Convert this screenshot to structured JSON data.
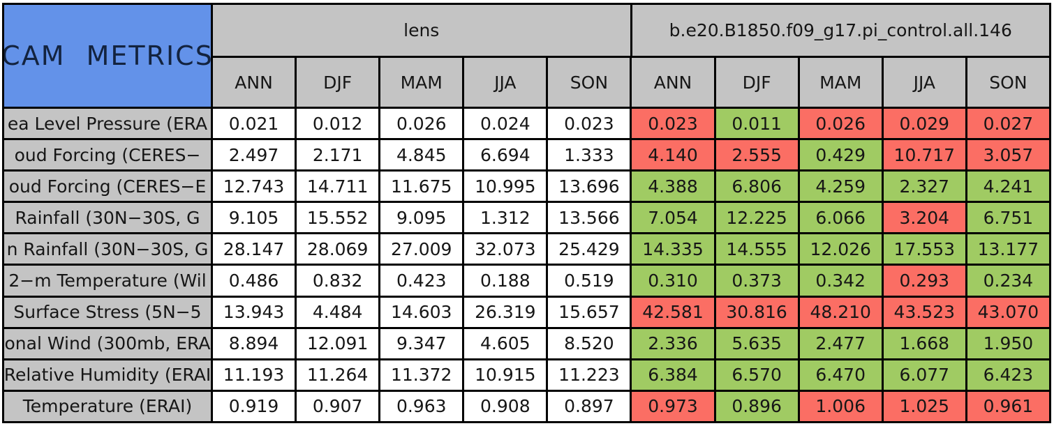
{
  "title": "CAM METRICS",
  "colors": {
    "corner_blue": "#6392E9",
    "header_gray": "#C4C4C4",
    "cell_green": "#A0CB63",
    "cell_red": "#FB6E64",
    "grid_line": "#000000",
    "lens_cell_white": "#FFFFFF"
  },
  "chart_data": {
    "type": "table",
    "title": "CAM METRICS",
    "column_groups": [
      {
        "label": "lens"
      },
      {
        "label": "b.e20.B1850.f09_g17.pi_control.all.146"
      }
    ],
    "seasons": [
      "ANN",
      "DJF",
      "MAM",
      "JJA",
      "SON"
    ],
    "rows": [
      {
        "label": "ea Level Pressure (ERA",
        "lens": [
          "0.021",
          "0.012",
          "0.026",
          "0.024",
          "0.023"
        ],
        "control": [
          "0.023",
          "0.011",
          "0.026",
          "0.029",
          "0.027"
        ],
        "control_status": [
          "red",
          "green",
          "red",
          "red",
          "red"
        ]
      },
      {
        "label": "oud Forcing (CERES−",
        "lens": [
          "2.497",
          "2.171",
          "4.845",
          "6.694",
          "1.333"
        ],
        "control": [
          "4.140",
          "2.555",
          "0.429",
          "10.717",
          "3.057"
        ],
        "control_status": [
          "red",
          "red",
          "green",
          "red",
          "red"
        ]
      },
      {
        "label": "oud Forcing (CERES−E",
        "lens": [
          "12.743",
          "14.711",
          "11.675",
          "10.995",
          "13.696"
        ],
        "control": [
          "4.388",
          "6.806",
          "4.259",
          "2.327",
          "4.241"
        ],
        "control_status": [
          "green",
          "green",
          "green",
          "green",
          "green"
        ]
      },
      {
        "label": "Rainfall (30N−30S, G",
        "lens": [
          "9.105",
          "15.552",
          "9.095",
          "1.312",
          "13.566"
        ],
        "control": [
          "7.054",
          "12.225",
          "6.066",
          "3.204",
          "6.751"
        ],
        "control_status": [
          "green",
          "green",
          "green",
          "red",
          "green"
        ]
      },
      {
        "label": "n Rainfall (30N−30S, G",
        "lens": [
          "28.147",
          "28.069",
          "27.009",
          "32.073",
          "25.429"
        ],
        "control": [
          "14.335",
          "14.555",
          "12.026",
          "17.553",
          "13.177"
        ],
        "control_status": [
          "green",
          "green",
          "green",
          "green",
          "green"
        ]
      },
      {
        "label": "2−m Temperature (Wil",
        "lens": [
          "0.486",
          "0.832",
          "0.423",
          "0.188",
          "0.519"
        ],
        "control": [
          "0.310",
          "0.373",
          "0.342",
          "0.293",
          "0.234"
        ],
        "control_status": [
          "green",
          "green",
          "green",
          "red",
          "green"
        ]
      },
      {
        "label": "Surface Stress (5N−5",
        "lens": [
          "13.943",
          "4.484",
          "14.603",
          "26.319",
          "15.657"
        ],
        "control": [
          "42.581",
          "30.816",
          "48.210",
          "43.523",
          "43.070"
        ],
        "control_status": [
          "red",
          "red",
          "red",
          "red",
          "red"
        ]
      },
      {
        "label": "onal Wind (300mb, ERA",
        "lens": [
          "8.894",
          "12.091",
          "9.347",
          "4.605",
          "8.520"
        ],
        "control": [
          "2.336",
          "5.635",
          "2.477",
          "1.668",
          "1.950"
        ],
        "control_status": [
          "green",
          "green",
          "green",
          "green",
          "green"
        ]
      },
      {
        "label": "Relative Humidity (ERAI",
        "lens": [
          "11.193",
          "11.264",
          "11.372",
          "10.915",
          "11.223"
        ],
        "control": [
          "6.384",
          "6.570",
          "6.470",
          "6.077",
          "6.423"
        ],
        "control_status": [
          "green",
          "green",
          "green",
          "green",
          "green"
        ]
      },
      {
        "label": "Temperature (ERAI)",
        "lens": [
          "0.919",
          "0.907",
          "0.963",
          "0.908",
          "0.897"
        ],
        "control": [
          "0.973",
          "0.896",
          "1.006",
          "1.025",
          "0.961"
        ],
        "control_status": [
          "red",
          "green",
          "red",
          "red",
          "red"
        ]
      }
    ]
  }
}
